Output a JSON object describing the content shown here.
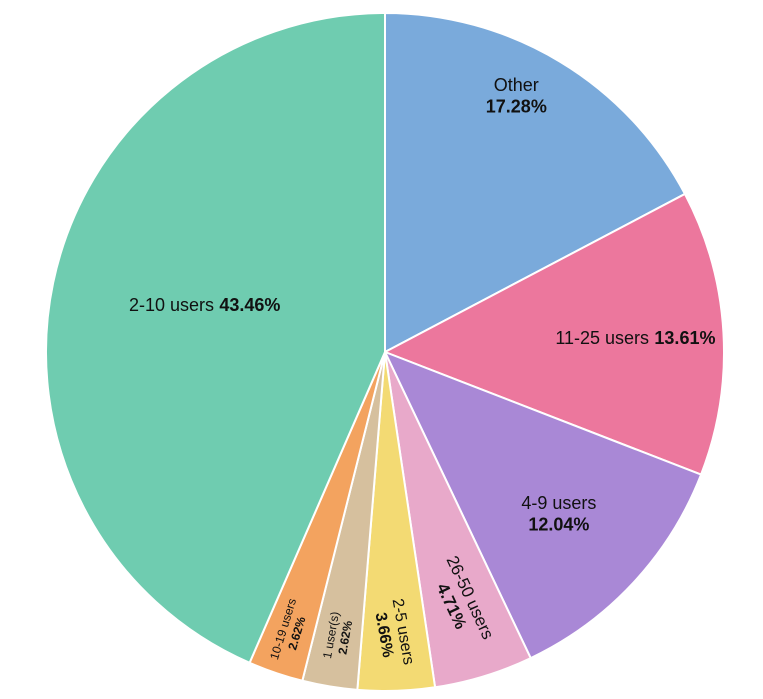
{
  "chart_data": {
    "type": "pie",
    "series": [
      {
        "name": "",
        "slices": [
          {
            "label": "Other",
            "value": 17.28,
            "display": "17.28%",
            "color": "#7aaadb"
          },
          {
            "label": "11-25 users",
            "value": 13.61,
            "display": "13.61%",
            "color": "#ec779d"
          },
          {
            "label": "4-9 users",
            "value": 12.04,
            "display": "12.04%",
            "color": "#a988d6"
          },
          {
            "label": "26-50 users",
            "value": 4.71,
            "display": "4.71%",
            "color": "#e8a9ca"
          },
          {
            "label": "2-5 users",
            "value": 3.66,
            "display": "3.66%",
            "color": "#f3da73"
          },
          {
            "label": "1 user(s)",
            "value": 2.62,
            "display": "2.62%",
            "color": "#d6c09e"
          },
          {
            "label": "10-19 users",
            "value": 2.62,
            "display": "2.62%",
            "color": "#f3a35f"
          },
          {
            "label": "2-10 users",
            "value": 43.46,
            "display": "43.46%",
            "color": "#6fccb0"
          }
        ]
      }
    ],
    "start_position": "12 o'clock",
    "direction": "clockwise",
    "legend": "none"
  }
}
